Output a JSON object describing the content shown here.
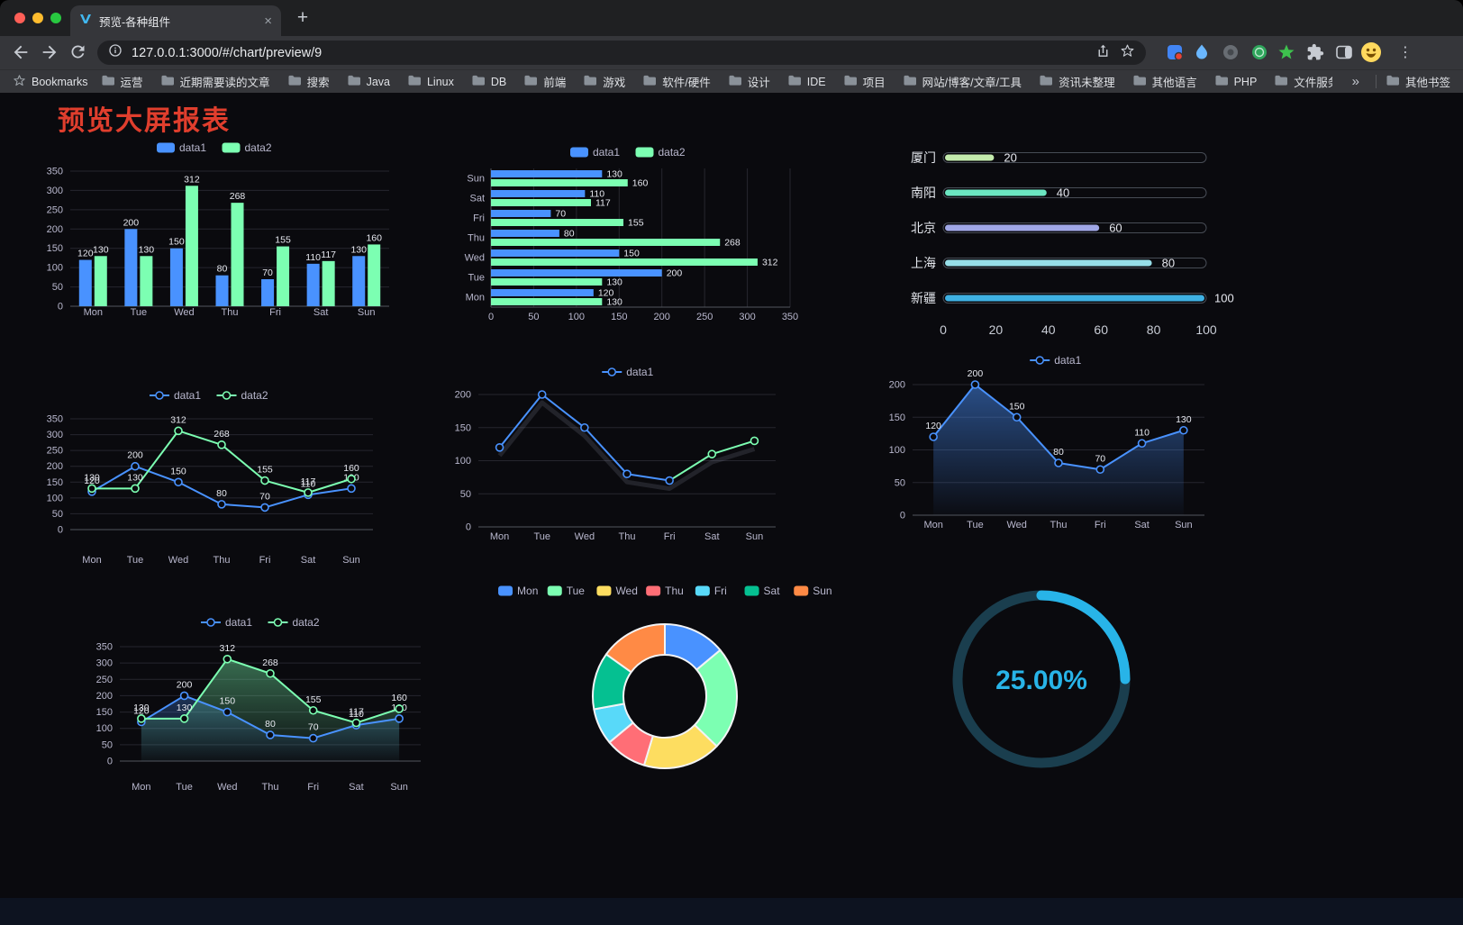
{
  "browser": {
    "tab_title": "预览-各种组件",
    "url": "127.0.0.1:3000/#/chart/preview/9",
    "icons": {
      "new_tab": "+",
      "close_tab": "×",
      "menu": "⋮"
    },
    "bookmarks_label": "Bookmarks",
    "bookmarks": [
      "运营",
      "近期需要读的文章",
      "搜索",
      "Java",
      "Linux",
      "DB",
      "前端",
      "游戏",
      "软件/硬件",
      "设计",
      "IDE",
      "项目",
      "网站/博客/文章/工具",
      "资讯未整理",
      "其他语言",
      "PHP",
      "文件服务器"
    ],
    "bookmarks_overflow": "»",
    "other_bookmarks": "其他书签"
  },
  "page": {
    "title": "预览大屏报表",
    "title_color": "#e03e2d",
    "background": "#0a0a0e"
  },
  "chart_data": [
    {
      "id": "grouped-bar",
      "type": "bar",
      "categories": [
        "Mon",
        "Tue",
        "Wed",
        "Thu",
        "Fri",
        "Sat",
        "Sun"
      ],
      "series": [
        {
          "name": "data1",
          "color": "#4992ff",
          "values": [
            120,
            200,
            150,
            80,
            70,
            110,
            130
          ]
        },
        {
          "name": "data2",
          "color": "#7cffb2",
          "values": [
            130,
            130,
            312,
            268,
            155,
            117,
            160
          ]
        }
      ],
      "ylim": [
        0,
        350
      ],
      "ytick_step": 50,
      "legend_position": "top",
      "point_labels": true
    },
    {
      "id": "grouped-horizontal-bar",
      "type": "hbar",
      "categories": [
        "Mon",
        "Tue",
        "Wed",
        "Thu",
        "Fri",
        "Sat",
        "Sun"
      ],
      "series": [
        {
          "name": "data1",
          "color": "#4992ff",
          "values": [
            120,
            200,
            150,
            80,
            70,
            110,
            130
          ]
        },
        {
          "name": "data2",
          "color": "#7cffb2",
          "values": [
            130,
            130,
            312,
            268,
            155,
            117,
            160
          ]
        }
      ],
      "xlim": [
        0,
        350
      ],
      "xtick_step": 50,
      "legend_position": "top",
      "point_labels": true
    },
    {
      "id": "city-progress-bars",
      "type": "progress",
      "rows": [
        {
          "label": "厦门",
          "value": 20,
          "color": "#c4ebad"
        },
        {
          "label": "南阳",
          "value": 40,
          "color": "#6be6c1"
        },
        {
          "label": "北京",
          "value": 60,
          "color": "#a0a7e6"
        },
        {
          "label": "上海",
          "value": 80,
          "color": "#96dee8"
        },
        {
          "label": "新疆",
          "value": 100,
          "color": "#3fb1e3"
        }
      ],
      "xlim": [
        0,
        100
      ],
      "xticks": [
        0,
        20,
        40,
        60,
        80,
        100
      ]
    },
    {
      "id": "dual-line",
      "type": "line",
      "categories": [
        "Mon",
        "Tue",
        "Wed",
        "Thu",
        "Fri",
        "Sat",
        "Sun"
      ],
      "series": [
        {
          "name": "data1",
          "color": "#4992ff",
          "values": [
            120,
            200,
            150,
            80,
            70,
            110,
            130
          ]
        },
        {
          "name": "data2",
          "color": "#7cffb2",
          "values": [
            130,
            130,
            312,
            268,
            155,
            117,
            160
          ]
        }
      ],
      "ylim": [
        0,
        350
      ],
      "ytick_step": 50,
      "legend_position": "top",
      "point_labels": true
    },
    {
      "id": "single-line",
      "type": "line",
      "categories": [
        "Mon",
        "Tue",
        "Wed",
        "Thu",
        "Fri",
        "Sat",
        "Sun"
      ],
      "series": [
        {
          "name": "data1",
          "color": "#4992ff",
          "values": [
            120,
            200,
            150,
            80,
            70,
            110,
            130
          ],
          "tail_from": 4,
          "tail_color": "#7cffb2"
        }
      ],
      "ylim": [
        0,
        200
      ],
      "ytick_step": 50,
      "legend_position": "top",
      "point_labels": false,
      "shadow": true
    },
    {
      "id": "area-line",
      "type": "line",
      "categories": [
        "Mon",
        "Tue",
        "Wed",
        "Thu",
        "Fri",
        "Sat",
        "Sun"
      ],
      "series": [
        {
          "name": "data1",
          "color": "#4992ff",
          "values": [
            120,
            200,
            150,
            80,
            70,
            110,
            130
          ],
          "area": true,
          "area_opacity": 0.5
        }
      ],
      "ylim": [
        0,
        200
      ],
      "ytick_step": 50,
      "legend_position": "top",
      "point_labels": true
    },
    {
      "id": "dual-area-line",
      "type": "line",
      "categories": [
        "Mon",
        "Tue",
        "Wed",
        "Thu",
        "Fri",
        "Sat",
        "Sun"
      ],
      "series": [
        {
          "name": "data1",
          "color": "#4992ff",
          "values": [
            120,
            200,
            150,
            80,
            70,
            110,
            130
          ],
          "area": true,
          "area_opacity": 0.3
        },
        {
          "name": "data2",
          "color": "#7cffb2",
          "values": [
            130,
            130,
            312,
            268,
            155,
            117,
            160
          ],
          "area": true,
          "area_opacity": 0.4
        }
      ],
      "ylim": [
        0,
        350
      ],
      "ytick_step": 50,
      "legend_position": "top",
      "point_labels": true
    },
    {
      "id": "weekday-donut",
      "type": "pie",
      "donut": true,
      "categories": [
        "Mon",
        "Tue",
        "Wed",
        "Thu",
        "Fri",
        "Sat",
        "Sun"
      ],
      "values": [
        120,
        200,
        150,
        80,
        70,
        110,
        130
      ],
      "colors": [
        "#4992ff",
        "#7cffb2",
        "#fddd60",
        "#ff6e76",
        "#58d9f9",
        "#05c091",
        "#ff8a45"
      ],
      "legend_position": "top"
    },
    {
      "id": "progress-gauge",
      "type": "gauge",
      "value": 25,
      "max": 100,
      "label": "25.00%",
      "color": "#28b4e8",
      "track_color": "#1a3e4e"
    }
  ]
}
